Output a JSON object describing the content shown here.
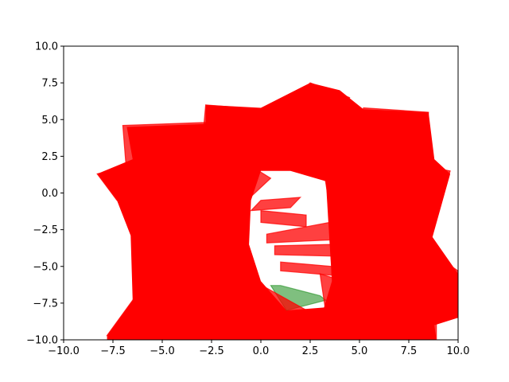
{
  "chart_data": {
    "type": "area",
    "title": "",
    "xlabel": "",
    "ylabel": "",
    "xlim": [
      -10,
      10
    ],
    "ylim": [
      -10,
      10
    ],
    "grid": false,
    "x_ticks": [
      -10,
      -7.5,
      -5,
      -2.5,
      0,
      2.5,
      5,
      7.5,
      10
    ],
    "y_ticks": [
      -10,
      -7.5,
      -5,
      -2.5,
      0,
      2.5,
      5,
      7.5,
      10
    ],
    "x_tick_labels": [
      "−10.0",
      "−7.5",
      "−5.0",
      "−2.5",
      "0.0",
      "2.5",
      "5.0",
      "7.5",
      "10.0"
    ],
    "y_tick_labels": [
      "−10.0",
      "−7.5",
      "−5.0",
      "−2.5",
      "0.0",
      "2.5",
      "5.0",
      "7.5",
      "10.0"
    ],
    "colors": {
      "obstacle": "#ff0000",
      "goal": "#008000",
      "hole": "#ffffff"
    },
    "goal_region": {
      "color": "#008000",
      "alpha": 0.5,
      "points": [
        [
          0.5,
          -6.3
        ],
        [
          1.3,
          -8.0
        ],
        [
          3.3,
          -7.3
        ],
        [
          3.0,
          -7.0
        ],
        [
          1.0,
          -6.3
        ]
      ]
    },
    "obstacle_band": {
      "outer": [
        [
          -8.3,
          1.3
        ],
        [
          -6.5,
          2.3
        ],
        [
          -6.8,
          4.5
        ],
        [
          -2.8,
          4.7
        ],
        [
          -2.8,
          6.0
        ],
        [
          0,
          5.8
        ],
        [
          2.5,
          7.5
        ],
        [
          4.0,
          7.0
        ],
        [
          5.2,
          5.7
        ],
        [
          8.5,
          5.5
        ],
        [
          8.8,
          2.3
        ],
        [
          9.6,
          1.3
        ],
        [
          8.7,
          -3.0
        ],
        [
          10.0,
          -5.5
        ],
        [
          10.0,
          -8.5
        ],
        [
          8.8,
          -9.0
        ],
        [
          8.9,
          -10.0
        ],
        [
          -7.8,
          -10.0
        ],
        [
          -7.8,
          -9.7
        ],
        [
          -6.5,
          -7.3
        ],
        [
          -6.6,
          -2.9
        ],
        [
          -7.3,
          -0.5
        ]
      ],
      "inner_hole": [
        [
          0,
          1.5
        ],
        [
          1.5,
          1.5
        ],
        [
          3.3,
          0.8
        ],
        [
          3.6,
          -6.0
        ],
        [
          3.2,
          -7.8
        ],
        [
          1.3,
          -8.0
        ],
        [
          0,
          -6.0
        ],
        [
          -0.6,
          -3.5
        ],
        [
          -0.5,
          -0.5
        ]
      ]
    },
    "obstacles": [
      {
        "points": [
          [
            -8.3,
            1.3
          ],
          [
            -4.5,
            2.5
          ],
          [
            -6.0,
            -1.5
          ],
          [
            -7.3,
            -0.5
          ]
        ]
      },
      {
        "points": [
          [
            -7.0,
            4.6
          ],
          [
            -2.8,
            4.8
          ],
          [
            -3.0,
            1.0
          ],
          [
            -6.8,
            1.2
          ]
        ]
      },
      {
        "points": [
          [
            -2.8,
            6.0
          ],
          [
            1.0,
            5.6
          ],
          [
            0.5,
            2.0
          ],
          [
            -3.0,
            3.0
          ]
        ]
      },
      {
        "points": [
          [
            2.5,
            7.5
          ],
          [
            4.5,
            6.5
          ],
          [
            3.0,
            2.5
          ],
          [
            0.0,
            4.0
          ]
        ]
      },
      {
        "points": [
          [
            5.2,
            5.8
          ],
          [
            8.5,
            5.5
          ],
          [
            8.3,
            2.0
          ],
          [
            4.5,
            2.5
          ]
        ]
      },
      {
        "points": [
          [
            6.0,
            2.5
          ],
          [
            9.6,
            1.5
          ],
          [
            8.5,
            -3.0
          ],
          [
            5.5,
            -1.5
          ]
        ]
      },
      {
        "points": [
          [
            7.5,
            -3.0
          ],
          [
            10.0,
            -5.3
          ],
          [
            10.0,
            -8.5
          ],
          [
            6.5,
            -6.5
          ]
        ]
      },
      {
        "points": [
          [
            -7.8,
            -9.7
          ],
          [
            -5.0,
            -9.0
          ],
          [
            -5.5,
            -5.0
          ],
          [
            -6.5,
            -7.3
          ]
        ]
      },
      {
        "points": [
          [
            -0.5,
            0.0
          ],
          [
            -2.0,
            0.2
          ],
          [
            -2.5,
            -4.0
          ],
          [
            -1.0,
            -4.5
          ]
        ]
      },
      {
        "points": [
          [
            0,
            -0.5
          ],
          [
            2.0,
            -0.3
          ],
          [
            1.5,
            -1.0
          ],
          [
            -0.5,
            -1.2
          ]
        ]
      },
      {
        "points": [
          [
            0,
            -1.2
          ],
          [
            2.3,
            -1.5
          ],
          [
            2.3,
            -2.3
          ],
          [
            0,
            -2.0
          ]
        ]
      },
      {
        "points": [
          [
            0.3,
            -2.8
          ],
          [
            3.5,
            -2.0
          ],
          [
            3.5,
            -3.2
          ],
          [
            0.3,
            -3.4
          ]
        ]
      },
      {
        "points": [
          [
            0.7,
            -3.6
          ],
          [
            3.6,
            -3.5
          ],
          [
            3.6,
            -4.3
          ],
          [
            0.7,
            -4.2
          ]
        ]
      },
      {
        "points": [
          [
            1.0,
            -4.7
          ],
          [
            3.6,
            -5.0
          ],
          [
            3.6,
            -5.6
          ],
          [
            1.0,
            -5.3
          ]
        ]
      },
      {
        "points": [
          [
            -1.0,
            -5.5
          ],
          [
            3.0,
            -8.5
          ],
          [
            2.5,
            -10.0
          ],
          [
            -3.0,
            -9.0
          ]
        ]
      },
      {
        "points": [
          [
            3.0,
            -5.5
          ],
          [
            8.9,
            -8.0
          ],
          [
            8.9,
            -10.0
          ],
          [
            3.5,
            -10.0
          ]
        ]
      },
      {
        "points": [
          [
            -2.5,
            3.5
          ],
          [
            0.5,
            1.0
          ],
          [
            -1.5,
            -1.5
          ],
          [
            -4.0,
            1.5
          ]
        ]
      },
      {
        "points": [
          [
            3.0,
            3.0
          ],
          [
            6.0,
            4.0
          ],
          [
            6.5,
            0.0
          ],
          [
            3.5,
            -1.0
          ]
        ]
      }
    ]
  }
}
